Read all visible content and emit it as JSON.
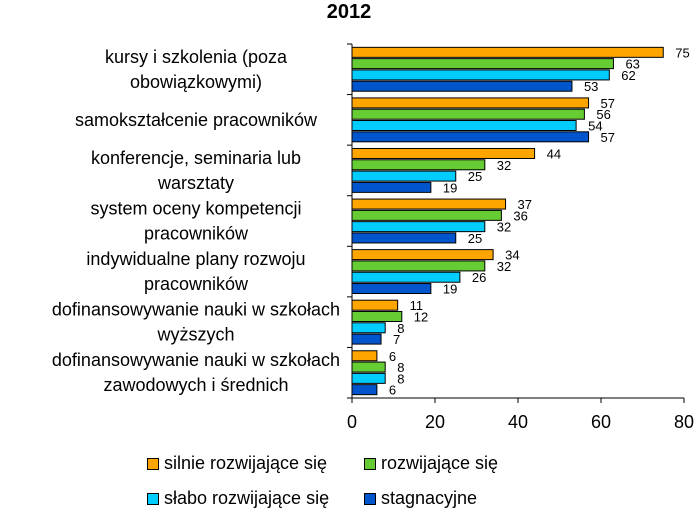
{
  "chart_data": {
    "type": "bar",
    "orientation": "horizontal",
    "title": "2012",
    "categories": [
      [
        "kursy i szkolenia (poza",
        "obowiązkowymi)"
      ],
      [
        "samokształcenie pracowników"
      ],
      [
        "konferencje, seminaria lub",
        "warsztaty"
      ],
      [
        "system oceny kompetencji",
        "pracowników"
      ],
      [
        "indywidualne plany rozwoju",
        "pracowników"
      ],
      [
        "dofinansowywanie nauki w szkołach",
        "wyższych"
      ],
      [
        "dofinansowywanie nauki w szkołach",
        "zawodowych i średnich"
      ]
    ],
    "series": [
      {
        "name": "silnie rozwijające się",
        "color": "#FFA500",
        "values": [
          75,
          57,
          44,
          37,
          34,
          11,
          6
        ]
      },
      {
        "name": "rozwijające się",
        "color": "#66CC33",
        "values": [
          63,
          56,
          32,
          36,
          32,
          12,
          8
        ]
      },
      {
        "name": "słabo rozwijające się",
        "color": "#00CCFF",
        "values": [
          62,
          54,
          25,
          32,
          26,
          8,
          8
        ]
      },
      {
        "name": "stagnacyjne",
        "color": "#0055CC",
        "values": [
          53,
          57,
          19,
          25,
          19,
          7,
          6
        ]
      }
    ],
    "xlim": [
      0,
      80
    ],
    "xticks": [
      0,
      20,
      40,
      60,
      80
    ],
    "xlabel": "",
    "ylabel": "",
    "grid": false,
    "legend_position": "bottom"
  }
}
